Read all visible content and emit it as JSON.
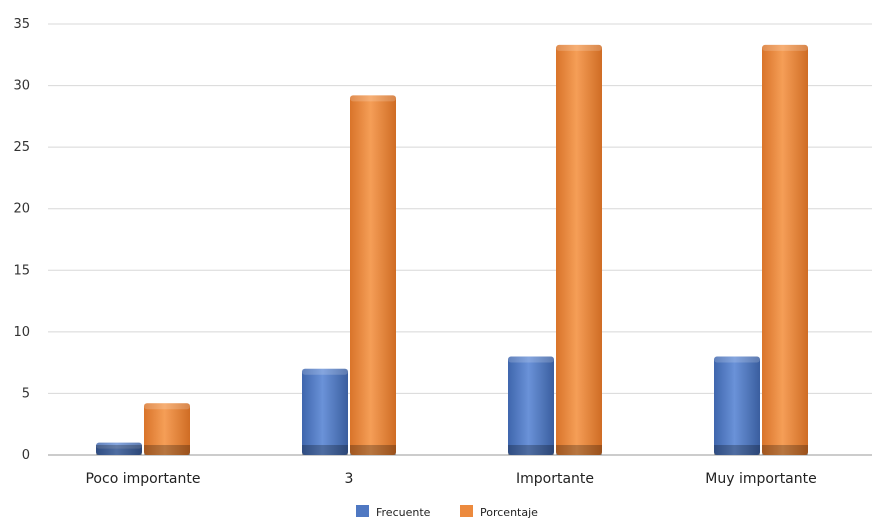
{
  "chart_data": {
    "type": "bar",
    "title": "",
    "xlabel": "",
    "ylabel": "",
    "categories": [
      "Poco importante",
      "3",
      "Importante",
      "Muy importante"
    ],
    "series": [
      {
        "name": "Frecuente",
        "values": [
          1,
          7,
          8,
          8
        ],
        "color": "#4f78c2"
      },
      {
        "name": "Porcentaje",
        "values": [
          4.2,
          29.2,
          33.3,
          33.3
        ],
        "color": "#ec8a3e"
      }
    ],
    "ylim": [
      0,
      35
    ],
    "yticks": [
      0,
      5,
      10,
      15,
      20,
      25,
      30,
      35
    ],
    "grid": true,
    "legend": "bottom-center"
  }
}
